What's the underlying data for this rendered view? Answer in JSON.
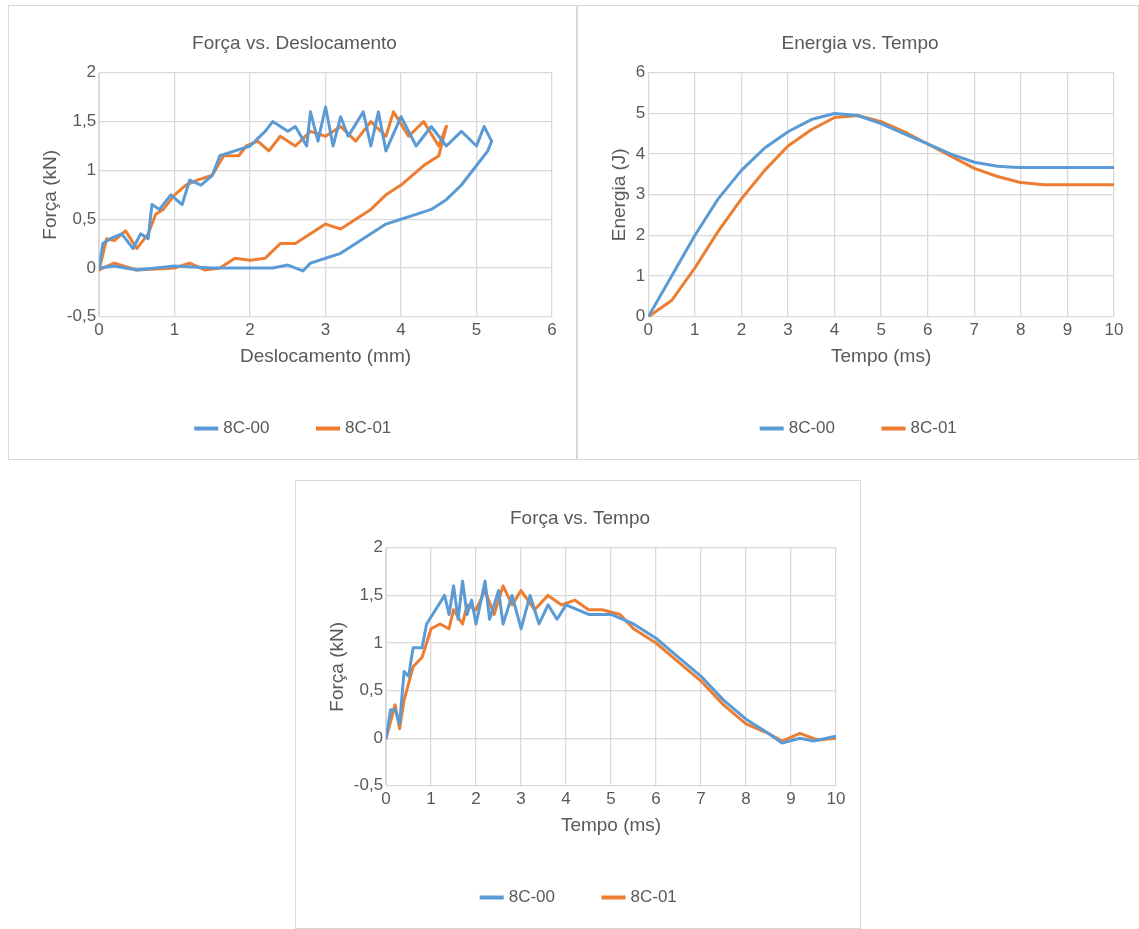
{
  "chart_data": [
    {
      "type": "line",
      "title": "Força vs. Deslocamento",
      "xlabel": "Deslocamento (mm)",
      "ylabel": "Força (kN)",
      "xlim": [
        0,
        6
      ],
      "xticks": [
        0,
        1,
        2,
        3,
        4,
        5,
        6
      ],
      "ylim": [
        -0.5,
        2
      ],
      "yticks": [
        {
          "value": -0.5,
          "label": "-0,5"
        },
        0,
        {
          "value": 0.5,
          "label": "0,5"
        },
        1,
        {
          "value": 1.5,
          "label": "1,5"
        },
        2
      ],
      "grid": true,
      "legend": "bottom",
      "marker": "none",
      "line_style": "solid",
      "series": [
        {
          "name": "8C-00",
          "color": "#5b9bd5",
          "x": [
            0,
            0.05,
            0.15,
            0.3,
            0.45,
            0.55,
            0.65,
            0.7,
            0.8,
            0.95,
            1.1,
            1.2,
            1.35,
            1.5,
            1.6,
            1.8,
            2.0,
            2.2,
            2.3,
            2.5,
            2.6,
            2.75,
            2.8,
            2.9,
            3.0,
            3.1,
            3.2,
            3.3,
            3.5,
            3.6,
            3.7,
            3.8,
            4.0,
            4.2,
            4.4,
            4.6,
            4.8,
            5.0,
            5.1,
            5.2
          ],
          "values": [
            0,
            0.25,
            0.3,
            0.35,
            0.2,
            0.35,
            0.3,
            0.65,
            0.6,
            0.75,
            0.65,
            0.9,
            0.85,
            0.95,
            1.15,
            1.2,
            1.25,
            1.4,
            1.5,
            1.4,
            1.45,
            1.25,
            1.6,
            1.3,
            1.65,
            1.25,
            1.55,
            1.35,
            1.6,
            1.25,
            1.6,
            1.2,
            1.55,
            1.25,
            1.45,
            1.25,
            1.4,
            1.25,
            1.45,
            1.3
          ]
        },
        {
          "color": "#5b9bd5",
          "x": [
            0,
            0.2,
            0.5,
            1.0,
            1.5,
            2.0,
            2.3,
            2.5,
            2.7,
            2.8,
            3.0,
            3.2,
            3.4,
            3.6,
            3.8,
            4.0,
            4.2,
            4.4,
            4.6,
            4.8,
            5.0,
            5.15,
            5.2
          ],
          "values": [
            0,
            0.02,
            -0.02,
            0.02,
            0,
            0,
            0,
            0.03,
            -0.03,
            0.05,
            0.1,
            0.15,
            0.25,
            0.35,
            0.45,
            0.5,
            0.55,
            0.6,
            0.7,
            0.85,
            1.05,
            1.2,
            1.3
          ]
        },
        {
          "name": "8C-01",
          "color": "#ed7d31",
          "x": [
            0,
            0.1,
            0.2,
            0.35,
            0.5,
            0.55,
            0.65,
            0.75,
            0.85,
            1.0,
            1.15,
            1.3,
            1.5,
            1.65,
            1.85,
            1.95,
            2.1,
            2.25,
            2.4,
            2.6,
            2.8,
            3.0,
            3.2,
            3.4,
            3.6,
            3.8,
            3.9,
            4.1,
            4.3,
            4.5,
            4.6
          ],
          "values": [
            -0.02,
            0.3,
            0.28,
            0.38,
            0.2,
            0.25,
            0.35,
            0.55,
            0.6,
            0.75,
            0.85,
            0.9,
            0.95,
            1.15,
            1.15,
            1.25,
            1.3,
            1.2,
            1.35,
            1.25,
            1.4,
            1.35,
            1.45,
            1.3,
            1.5,
            1.35,
            1.6,
            1.35,
            1.5,
            1.25,
            1.45
          ]
        },
        {
          "color": "#ed7d31",
          "x": [
            0,
            0.2,
            0.5,
            1.0,
            1.2,
            1.4,
            1.6,
            1.8,
            2.0,
            2.2,
            2.4,
            2.6,
            2.8,
            3.0,
            3.2,
            3.4,
            3.6,
            3.8,
            4.0,
            4.15,
            4.3,
            4.5,
            4.6
          ],
          "values": [
            -0.02,
            0.05,
            -0.02,
            0,
            0.05,
            -0.02,
            0,
            0.1,
            0.08,
            0.1,
            0.25,
            0.25,
            0.35,
            0.45,
            0.4,
            0.5,
            0.6,
            0.75,
            0.85,
            0.95,
            1.05,
            1.15,
            1.45
          ]
        }
      ]
    },
    {
      "type": "line",
      "title": "Energia vs. Tempo",
      "xlabel": "Tempo (ms)",
      "ylabel": "Energia (J)",
      "xlim": [
        0,
        10
      ],
      "xticks": [
        0,
        1,
        2,
        3,
        4,
        5,
        6,
        7,
        8,
        9,
        10
      ],
      "ylim": [
        0,
        6
      ],
      "yticks": [
        0,
        1,
        2,
        3,
        4,
        5,
        6
      ],
      "grid": true,
      "legend": "bottom",
      "marker": "none",
      "line_style": "solid",
      "series": [
        {
          "name": "8C-00",
          "color": "#5b9bd5",
          "x": [
            0,
            0.5,
            1,
            1.5,
            2,
            2.5,
            3,
            3.5,
            4,
            4.5,
            5,
            5.5,
            6,
            6.5,
            7,
            7.5,
            8,
            9,
            10
          ],
          "values": [
            0,
            1.0,
            2.0,
            2.9,
            3.6,
            4.15,
            4.55,
            4.85,
            5.0,
            4.95,
            4.75,
            4.5,
            4.25,
            4.0,
            3.8,
            3.7,
            3.67,
            3.67,
            3.67
          ]
        },
        {
          "name": "8C-01",
          "color": "#ed7d31",
          "x": [
            0,
            0.5,
            1,
            1.5,
            2,
            2.5,
            3,
            3.5,
            4,
            4.5,
            5,
            5.5,
            6,
            6.5,
            7,
            7.5,
            8,
            8.5,
            10
          ],
          "values": [
            0,
            0.4,
            1.2,
            2.1,
            2.9,
            3.6,
            4.2,
            4.6,
            4.9,
            4.95,
            4.8,
            4.55,
            4.25,
            3.95,
            3.65,
            3.45,
            3.3,
            3.25,
            3.25
          ]
        }
      ]
    },
    {
      "type": "line",
      "title": "Força vs. Tempo",
      "xlabel": "Tempo (ms)",
      "ylabel": "Força (kN)",
      "xlim": [
        0,
        10
      ],
      "xticks": [
        0,
        1,
        2,
        3,
        4,
        5,
        6,
        7,
        8,
        9,
        10
      ],
      "ylim": [
        -0.5,
        2
      ],
      "yticks": [
        {
          "value": -0.5,
          "label": "-0,5"
        },
        0,
        {
          "value": 0.5,
          "label": "0,5"
        },
        1,
        {
          "value": 1.5,
          "label": "1,5"
        },
        2
      ],
      "grid": true,
      "legend": "bottom",
      "marker": "none",
      "line_style": "solid",
      "series": [
        {
          "name": "8C-00",
          "color": "#5b9bd5",
          "x": [
            0,
            0.1,
            0.2,
            0.3,
            0.4,
            0.5,
            0.6,
            0.8,
            0.9,
            1.1,
            1.3,
            1.4,
            1.5,
            1.6,
            1.7,
            1.8,
            1.9,
            2.0,
            2.2,
            2.3,
            2.5,
            2.6,
            2.8,
            3.0,
            3.2,
            3.4,
            3.6,
            3.8,
            4.0,
            4.5,
            5.0,
            5.5,
            6,
            6.5,
            7,
            7.5,
            8,
            8.5,
            8.8,
            9.2,
            9.5,
            10
          ],
          "values": [
            0,
            0.3,
            0.3,
            0.15,
            0.7,
            0.65,
            0.95,
            0.95,
            1.2,
            1.35,
            1.5,
            1.3,
            1.6,
            1.25,
            1.65,
            1.3,
            1.45,
            1.2,
            1.65,
            1.25,
            1.55,
            1.2,
            1.5,
            1.15,
            1.5,
            1.2,
            1.4,
            1.25,
            1.4,
            1.3,
            1.3,
            1.2,
            1.05,
            0.85,
            0.65,
            0.4,
            0.2,
            0.05,
            -0.05,
            0,
            -0.03,
            0.02
          ]
        },
        {
          "name": "8C-01",
          "color": "#ed7d31",
          "x": [
            0,
            0.2,
            0.3,
            0.4,
            0.6,
            0.8,
            1.0,
            1.2,
            1.4,
            1.5,
            1.7,
            1.8,
            2.0,
            2.2,
            2.4,
            2.6,
            2.8,
            3.0,
            3.3,
            3.6,
            3.9,
            4.2,
            4.5,
            4.8,
            5.2,
            5.5,
            6,
            6.5,
            7,
            7.5,
            8,
            8.5,
            8.8,
            9.2,
            9.6,
            10
          ],
          "values": [
            0,
            0.35,
            0.1,
            0.4,
            0.75,
            0.85,
            1.15,
            1.2,
            1.15,
            1.35,
            1.2,
            1.4,
            1.35,
            1.55,
            1.3,
            1.6,
            1.4,
            1.55,
            1.35,
            1.5,
            1.4,
            1.45,
            1.35,
            1.35,
            1.3,
            1.15,
            1,
            0.8,
            0.6,
            0.35,
            0.15,
            0.05,
            -0.03,
            0.05,
            -0.02,
            0
          ]
        }
      ]
    }
  ]
}
